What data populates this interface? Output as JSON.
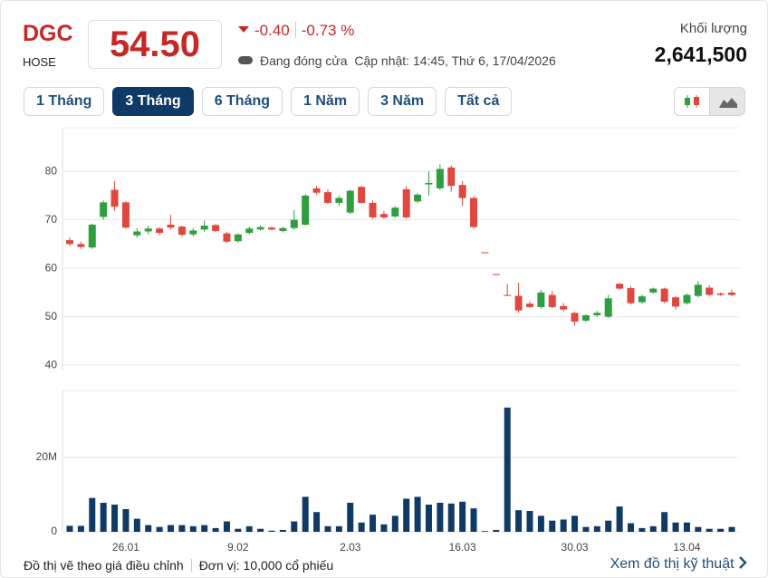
{
  "header": {
    "symbol": "DGC",
    "exchange": "HOSE",
    "price": "54.50",
    "change": "-0.40",
    "change_percent": "-0.73 %",
    "status": "Đang đóng cửa",
    "updated": "Cập nhật: 14:45, Thứ 6, 17/04/2026",
    "volume_label": "Khối lượng",
    "volume": "2,641,500"
  },
  "tabs": [
    "1 Tháng",
    "3 Tháng",
    "6 Tháng",
    "1 Năm",
    "3 Năm",
    "Tất cả"
  ],
  "active_tab": 1,
  "footer": {
    "note": "Đồ thị vẽ theo giá điều chỉnh",
    "unit": "Đơn vị: 10,000 cổ phiếu",
    "link": "Xem đồ thị kỹ thuật"
  },
  "chart_data": [
    {
      "type": "candlestick",
      "up_color": "#2e9e3e",
      "down_color": "#e0473f",
      "grid": true,
      "ylim": [
        38.9,
        89
      ],
      "yticks": [
        40,
        50,
        60,
        70,
        80
      ],
      "open": [
        65.8,
        65.0,
        64.3,
        70.6,
        76.2,
        73.6,
        66.8,
        67.6,
        68.2,
        69.0,
        68.6,
        67.0,
        68.0,
        68.9,
        67.2,
        65.6,
        67.3,
        68.0,
        68.4,
        67.7,
        68.3,
        69.0,
        76.5,
        75.7,
        73.5,
        71.5,
        76.8,
        73.5,
        71.2,
        70.7,
        76.3,
        73.8,
        77.3,
        76.5,
        80.8,
        77.2,
        74.5,
        63.3,
        58.8,
        54.5,
        54.3,
        52.7,
        52.0,
        54.5,
        52.2,
        50.8,
        49.2,
        50.3,
        50.0,
        56.8,
        55.9,
        53.0,
        55.0,
        55.8,
        54.0,
        52.8,
        54.3,
        56.0,
        54.8,
        55.0
      ],
      "high": [
        66.3,
        65.5,
        69.2,
        74.0,
        78.0,
        73.8,
        68.3,
        68.8,
        68.5,
        71.0,
        68.8,
        68.3,
        69.8,
        69.2,
        67.5,
        67.2,
        68.6,
        68.9,
        68.6,
        68.5,
        72.0,
        75.3,
        77.0,
        76.3,
        75.0,
        76.2,
        77.0,
        74.0,
        71.8,
        72.8,
        77.0,
        75.5,
        80.0,
        81.5,
        81.2,
        78.0,
        75.0,
        63.3,
        58.8,
        56.8,
        57.0,
        53.2,
        55.5,
        55.3,
        52.8,
        51.0,
        50.5,
        51.2,
        54.5,
        57.0,
        56.3,
        54.6,
        56.0,
        56.0,
        54.3,
        54.8,
        57.3,
        56.5,
        55.0,
        55.6
      ],
      "low": [
        64.6,
        64.0,
        64.0,
        70.0,
        71.8,
        68.2,
        66.3,
        67.0,
        66.8,
        68.0,
        66.5,
        66.6,
        67.5,
        67.5,
        65.2,
        65.3,
        67.0,
        67.8,
        67.8,
        67.4,
        68.0,
        68.8,
        75.2,
        73.2,
        72.8,
        71.2,
        73.3,
        70.2,
        70.2,
        70.4,
        70.3,
        73.5,
        75.0,
        76.2,
        75.8,
        72.8,
        68.2,
        63.1,
        58.6,
        54.3,
        50.8,
        51.8,
        51.6,
        51.8,
        51.0,
        48.2,
        48.9,
        50.0,
        49.8,
        55.5,
        52.5,
        52.7,
        54.8,
        52.8,
        51.5,
        52.5,
        54.0,
        54.2,
        54.3,
        54.2
      ],
      "close": [
        65.0,
        64.4,
        69.0,
        73.6,
        72.7,
        68.4,
        67.6,
        68.2,
        67.3,
        68.4,
        66.9,
        67.8,
        68.8,
        67.7,
        65.5,
        67.0,
        68.2,
        68.5,
        68.0,
        68.3,
        70.0,
        75.0,
        75.6,
        73.5,
        74.5,
        76.0,
        73.5,
        70.5,
        70.5,
        72.5,
        70.5,
        75.2,
        77.6,
        80.5,
        77.0,
        74.5,
        68.5,
        63.1,
        58.6,
        54.3,
        51.3,
        52.0,
        55.0,
        52.0,
        51.5,
        49.0,
        50.3,
        50.8,
        53.8,
        55.8,
        52.8,
        54.2,
        55.8,
        53.1,
        52.1,
        54.5,
        56.6,
        54.5,
        54.5,
        54.5
      ]
    },
    {
      "type": "bar",
      "color": "#0f3a66",
      "grid": true,
      "categories": [
        null,
        null,
        null,
        null,
        null,
        "26.01",
        null,
        null,
        null,
        null,
        null,
        null,
        null,
        null,
        null,
        "9.02",
        null,
        null,
        null,
        null,
        null,
        null,
        null,
        null,
        null,
        "2.03",
        null,
        null,
        null,
        null,
        null,
        null,
        null,
        null,
        null,
        "16.03",
        null,
        null,
        null,
        null,
        null,
        null,
        null,
        null,
        null,
        "30.03",
        null,
        null,
        null,
        null,
        null,
        null,
        null,
        null,
        null,
        "13.04",
        null,
        null,
        null,
        null
      ],
      "ylim": [
        0,
        38
      ],
      "yticks": [
        0,
        {
          "value": 20,
          "label": "20M"
        }
      ],
      "values": [
        1.6,
        1.6,
        9.1,
        7.8,
        7.3,
        6.1,
        3.5,
        1.8,
        1.3,
        1.8,
        1.8,
        1.5,
        1.8,
        1.0,
        2.8,
        0.8,
        1.5,
        0.8,
        0.3,
        0.5,
        2.8,
        9.4,
        5.3,
        1.5,
        1.5,
        7.8,
        2.5,
        4.6,
        2.0,
        4.3,
        8.9,
        9.4,
        7.3,
        7.8,
        7.6,
        8.1,
        6.3,
        0.2,
        0.5,
        33.4,
        5.8,
        5.6,
        4.3,
        3.0,
        3.3,
        4.3,
        1.3,
        1.5,
        3.0,
        6.8,
        2.3,
        1.0,
        1.5,
        5.3,
        2.5,
        2.5,
        1.3,
        0.8,
        0.8,
        1.3
      ]
    }
  ]
}
